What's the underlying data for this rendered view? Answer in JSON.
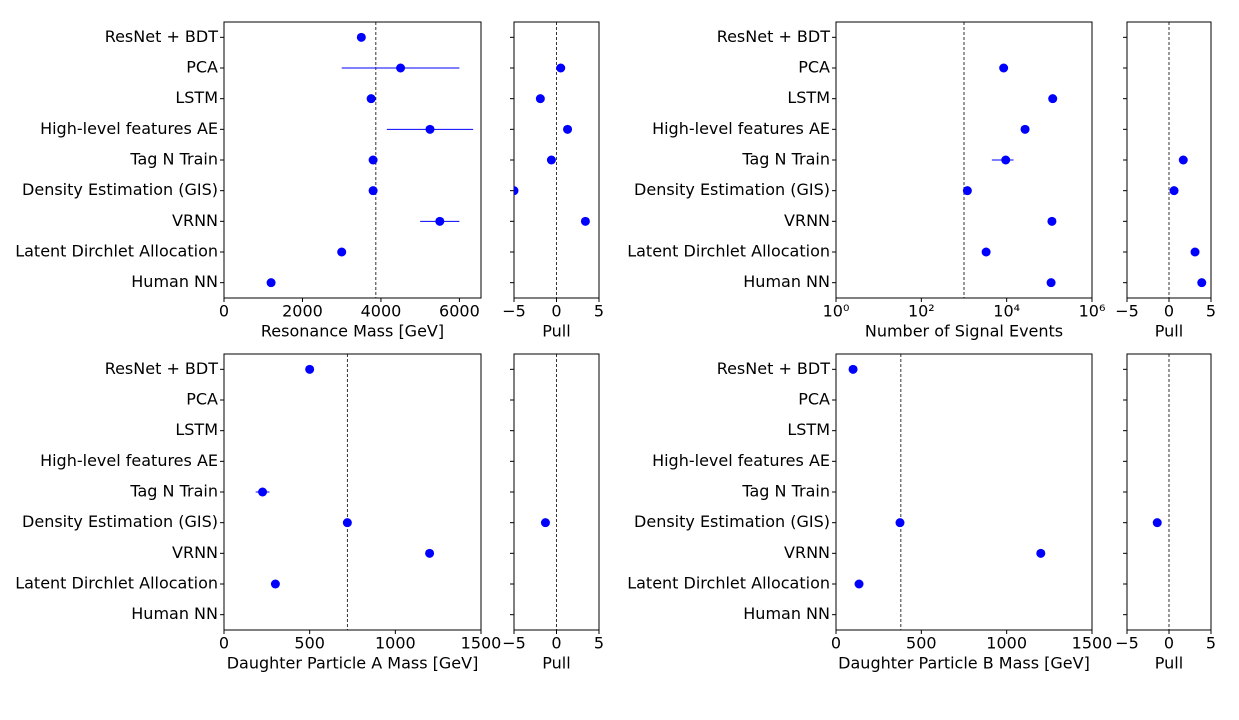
{
  "chart_data": [
    {
      "type": "dot",
      "categories": [
        "ResNet + BDT",
        "PCA",
        "LSTM",
        "High-level features AE",
        "Tag N Train",
        "Density Estimation (GIS)",
        "VRNN",
        "Latent Dirchlet Allocation",
        "Human NN"
      ],
      "values": [
        3500,
        4500,
        3750,
        5250,
        3800,
        3800,
        5500,
        3000,
        1200
      ],
      "errors": [
        null,
        1500,
        null,
        1100,
        null,
        null,
        500,
        null,
        null
      ],
      "reference": 3870,
      "xlim": [
        0,
        6550
      ],
      "xticks": [
        0,
        2000,
        4000,
        6000
      ],
      "xlabel": "Resonance Mass [GeV]",
      "color": "#0000ff"
    },
    {
      "type": "dot",
      "values": [
        null,
        0.5,
        -1.9,
        1.3,
        -0.6,
        -5,
        3.4,
        null,
        null
      ],
      "reference": 0,
      "xlim": [
        -5,
        5
      ],
      "xticks": [
        {
          "value": -5,
          "label": "−5"
        },
        0,
        5
      ],
      "xlabel": "Pull",
      "color": "#0000ff"
    },
    {
      "type": "dot",
      "categories": [
        "ResNet + BDT",
        "PCA",
        "LSTM",
        "High-level features AE",
        "Tag N Train",
        "Density Estimation (GIS)",
        "VRNN",
        "Latent Dirchlet Allocation",
        "Human NN"
      ],
      "values": [
        null,
        8500,
        120000,
        27000,
        9500,
        1200,
        115000,
        3300,
        110000
      ],
      "errors": [
        null,
        null,
        null,
        null,
        5000,
        null,
        null,
        null,
        null
      ],
      "reference": 1000,
      "log": true,
      "xlim": [
        1,
        1000000
      ],
      "xticks": [
        {
          "value": 1,
          "label": "10⁰"
        },
        {
          "value": 100,
          "label": "10²"
        },
        {
          "value": 10000,
          "label": "10⁴"
        },
        {
          "value": 1000000,
          "label": "10⁶"
        }
      ],
      "xlabel": "Number of Signal Events",
      "color": "#0000ff"
    },
    {
      "type": "dot",
      "values": [
        null,
        null,
        null,
        null,
        1.7,
        0.6,
        null,
        3.1,
        3.9
      ],
      "reference": 0,
      "xlim": [
        -5,
        5
      ],
      "xticks": [
        {
          "value": -5,
          "label": "−5"
        },
        0,
        5
      ],
      "xlabel": "Pull",
      "color": "#0000ff"
    },
    {
      "type": "dot",
      "categories": [
        "ResNet + BDT",
        "PCA",
        "LSTM",
        "High-level features AE",
        "Tag N Train",
        "Density Estimation (GIS)",
        "VRNN",
        "Latent Dirchlet Allocation",
        "Human NN"
      ],
      "values": [
        500,
        null,
        null,
        null,
        225,
        720,
        1200,
        300,
        null
      ],
      "errors": [
        null,
        null,
        null,
        null,
        40,
        null,
        null,
        null,
        null
      ],
      "reference": 720,
      "xlim": [
        0,
        1500
      ],
      "xticks": [
        0,
        500,
        1000,
        1500
      ],
      "xlabel": "Daughter Particle A Mass [GeV]",
      "color": "#0000ff"
    },
    {
      "type": "dot",
      "values": [
        null,
        null,
        null,
        null,
        null,
        -1.3,
        null,
        null,
        null
      ],
      "reference": 0,
      "xlim": [
        -5,
        5
      ],
      "xticks": [
        {
          "value": -5,
          "label": "−5"
        },
        0,
        5
      ],
      "xlabel": "Pull",
      "color": "#0000ff"
    },
    {
      "type": "dot",
      "categories": [
        "ResNet + BDT",
        "PCA",
        "LSTM",
        "High-level features AE",
        "Tag N Train",
        "Density Estimation (GIS)",
        "VRNN",
        "Latent Dirchlet Allocation",
        "Human NN"
      ],
      "values": [
        100,
        null,
        null,
        null,
        null,
        375,
        1200,
        135,
        null
      ],
      "reference": 380,
      "xlim": [
        0,
        1500
      ],
      "xticks": [
        0,
        500,
        1000,
        1500
      ],
      "xlabel": "Daughter Particle B Mass [GeV]",
      "color": "#0000ff"
    },
    {
      "type": "dot",
      "values": [
        null,
        null,
        null,
        null,
        null,
        -1.4,
        null,
        null,
        null
      ],
      "reference": 0,
      "xlim": [
        -5,
        5
      ],
      "xticks": [
        {
          "value": -5,
          "label": "−5"
        },
        0,
        5
      ],
      "xlabel": "Pull",
      "color": "#0000ff"
    }
  ]
}
